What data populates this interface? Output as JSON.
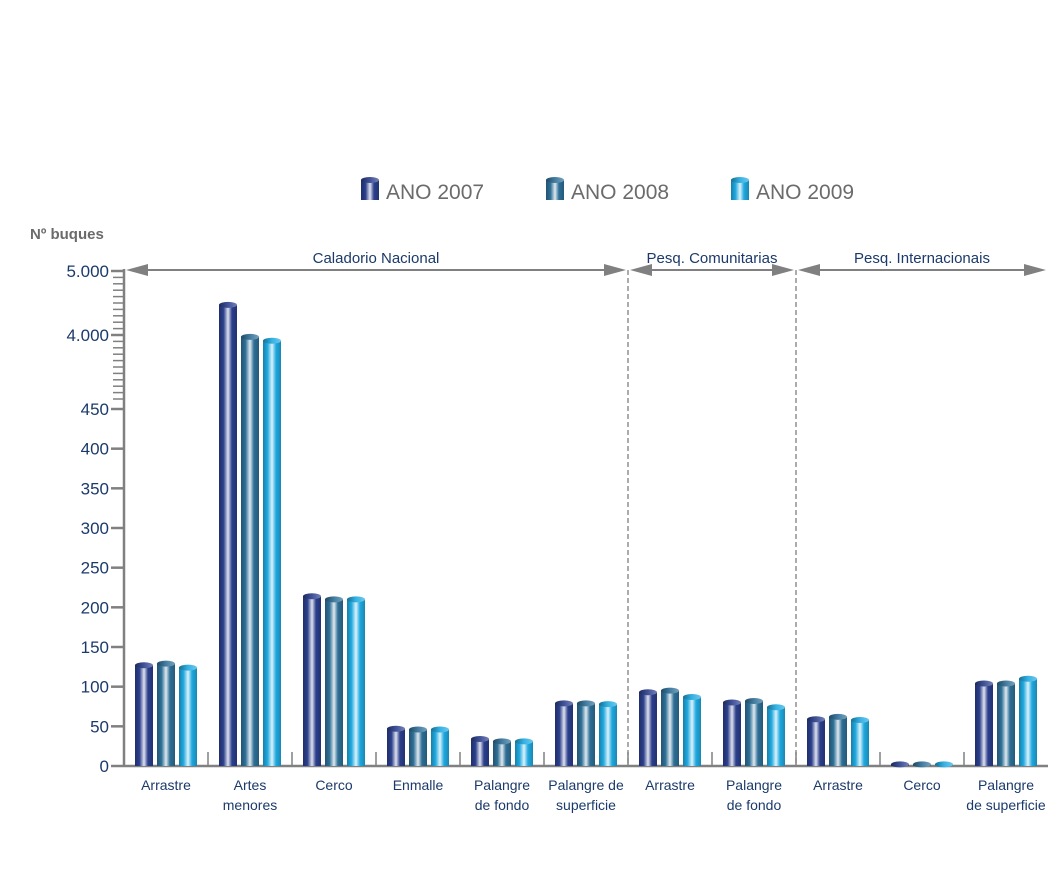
{
  "chart_data": {
    "type": "bar",
    "title": "",
    "ylabel": "Nº buques",
    "xlabel": "",
    "ylim": [
      0,
      5000
    ],
    "axis_break": [
      450,
      3400
    ],
    "yticks": [
      {
        "value": 0,
        "label": "0"
      },
      {
        "value": 50,
        "label": "50"
      },
      {
        "value": 100,
        "label": "100"
      },
      {
        "value": 150,
        "label": "150"
      },
      {
        "value": 200,
        "label": "200"
      },
      {
        "value": 250,
        "label": "250"
      },
      {
        "value": 300,
        "label": "300"
      },
      {
        "value": 350,
        "label": "350"
      },
      {
        "value": 400,
        "label": "400"
      },
      {
        "value": 450,
        "label": "450"
      },
      {
        "value": 4000,
        "label": "4.000"
      },
      {
        "value": 5000,
        "label": "5.000"
      }
    ],
    "legend_position": "top-center",
    "sections": [
      {
        "label": "Caladorio Nacional",
        "categories": 6
      },
      {
        "label": "Pesq. Comunitarias",
        "categories": 2
      },
      {
        "label": "Pesq. Internacionais",
        "categories": 3
      }
    ],
    "categories": [
      [
        "Arrastre"
      ],
      [
        "Artes",
        "menores"
      ],
      [
        "Cerco"
      ],
      [
        "Enmalle"
      ],
      [
        "Palangre",
        "de fondo"
      ],
      [
        "Palangre de",
        "superficie"
      ],
      [
        "Arrastre"
      ],
      [
        "Palangre",
        "de fondo"
      ],
      [
        "Arrastre"
      ],
      [
        "Cerco"
      ],
      [
        "Palangre",
        "de superficie"
      ]
    ],
    "series": [
      {
        "name": "ANO 2007",
        "color": "#2b3f8c",
        "values": [
          127,
          4470,
          214,
          47,
          34,
          79,
          93,
          80,
          59,
          2,
          104
        ]
      },
      {
        "name": "ANO 2008",
        "color": "#2e6f96",
        "values": [
          129,
          3970,
          210,
          46,
          31,
          79,
          95,
          82,
          62,
          2,
          104
        ]
      },
      {
        "name": "ANO 2009",
        "color": "#1fa9e0",
        "values": [
          124,
          3910,
          210,
          46,
          31,
          78,
          87,
          74,
          58,
          2,
          110
        ]
      }
    ]
  }
}
